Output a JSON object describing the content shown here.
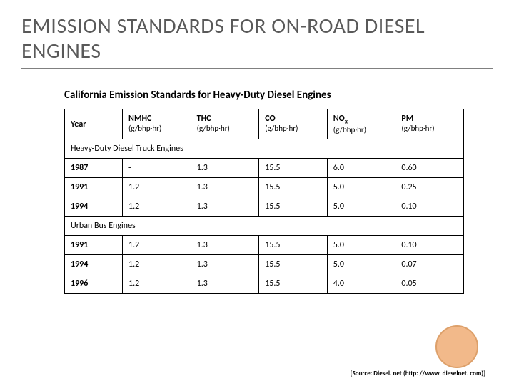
{
  "title": "EMISSION STANDARDS FOR ON-ROAD DIESEL ENGINES",
  "subtitle": "California Emission Standards for Heavy-Duty Diesel Engines",
  "table": {
    "columns": [
      {
        "main": "Year",
        "unit": ""
      },
      {
        "main": "NMHC",
        "unit": "(g/bhp·hr)"
      },
      {
        "main": "THC",
        "unit": "(g/bhp·hr)"
      },
      {
        "main": "CO",
        "unit": "(g/bhp·hr)"
      },
      {
        "main": "NOx",
        "unit": "(g/bhp·hr)"
      },
      {
        "main": "PM",
        "unit": "(g/bhp·hr)"
      }
    ],
    "sections": [
      {
        "label": "Heavy-Duty Diesel Truck Engines",
        "rows": [
          {
            "year": "1987",
            "cells": [
              "-",
              "1.3",
              "15.5",
              "6.0",
              "0.60"
            ]
          },
          {
            "year": "1991",
            "cells": [
              "1.2",
              "1.3",
              "15.5",
              "5.0",
              "0.25"
            ]
          },
          {
            "year": "1994",
            "cells": [
              "1.2",
              "1.3",
              "15.5",
              "5.0",
              "0.10"
            ]
          }
        ]
      },
      {
        "label": "Urban Bus Engines",
        "rows": [
          {
            "year": "1991",
            "cells": [
              "1.2",
              "1.3",
              "15.5",
              "5.0",
              "0.10"
            ]
          },
          {
            "year": "1994",
            "cells": [
              "1.2",
              "1.3",
              "15.5",
              "5.0",
              "0.07"
            ]
          },
          {
            "year": "1996",
            "cells": [
              "1.2",
              "1.3",
              "15.5",
              "4.0",
              "0.05"
            ]
          }
        ]
      }
    ]
  },
  "source": "[Source: Diesel. net (http: //www. dieselnet. com)]",
  "colors": {
    "title_color": "#595959",
    "underline_color": "#808080",
    "text_color": "#000000",
    "border_color": "#000000",
    "circle_fill": "#f2b98a",
    "circle_border": "#dda06a",
    "background": "#ffffff"
  },
  "typography": {
    "title_fontsize": 30,
    "subtitle_fontsize": 15,
    "cell_fontsize": 12,
    "source_fontsize": 9
  }
}
